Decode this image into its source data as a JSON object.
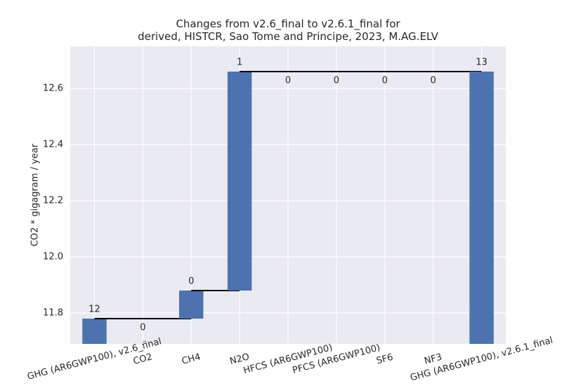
{
  "chart_data": {
    "type": "waterfall",
    "title": "Changes from v2.6_final to v2.6.1_final for\nderived, HISTCR, Sao Tome and Principe, 2023, M.AG.ELV",
    "y_label": "CO2 * gigagram / year",
    "categories": [
      "GHG (AR6GWP100), v2.6_final",
      "CO2",
      "CH4",
      "N2O",
      "HFCS (AR6GWP100)",
      "PFCS (AR6GWP100)",
      "SF6",
      "NF3",
      "GHG (AR6GWP100), v2.6.1_final"
    ],
    "values": [
      11.78,
      0,
      0.1,
      0.78,
      0,
      0,
      0,
      0,
      12.66
    ],
    "value_labels": [
      "12",
      "0",
      "0",
      "1",
      "0",
      "0",
      "0",
      "0",
      "13"
    ],
    "color": "#4c72b0",
    "ylim": [
      11.69,
      12.75
    ],
    "yticks": [
      11.8,
      {
        "value": 12,
        "label": "12.0"
      },
      12.2,
      12.4,
      12.6
    ],
    "grid": true
  }
}
